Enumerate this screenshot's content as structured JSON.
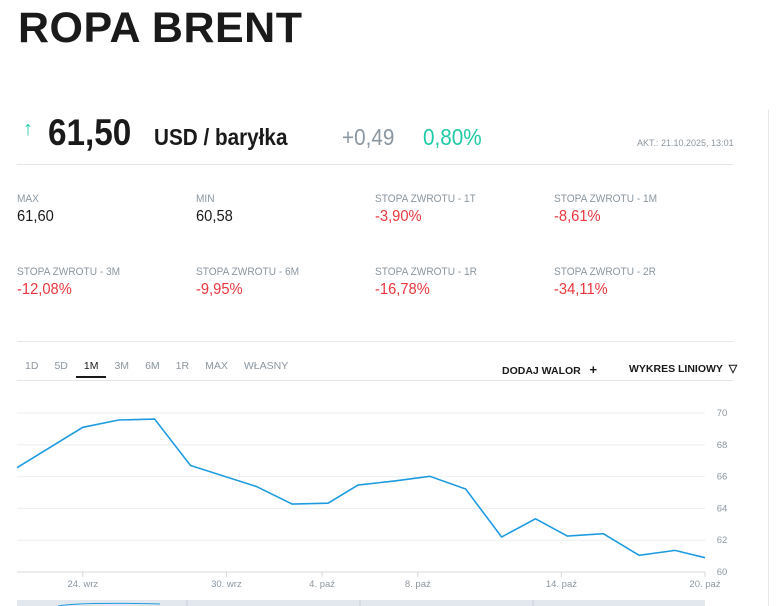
{
  "header": {
    "title": "ROPA BRENT"
  },
  "quote": {
    "direction_icon": "arrow-up-icon",
    "price": "61,50",
    "unit": "USD / baryłka",
    "change": "+0,49",
    "change_pct": "0,80%",
    "updated": "AKT.: 21.10.2025, 13:01"
  },
  "stats": [
    {
      "label": "MAX",
      "value": "61,60"
    },
    {
      "label": "MIN",
      "value": "60,58"
    },
    {
      "label": "STOPA ZWROTU - 1T",
      "value": "-3,90%"
    },
    {
      "label": "STOPA ZWROTU - 1M",
      "value": "-8,61%"
    },
    {
      "label": "STOPA ZWROTU - 3M",
      "value": "-12,08%"
    },
    {
      "label": "STOPA ZWROTU - 6M",
      "value": "-9,95%"
    },
    {
      "label": "STOPA ZWROTU - 1R",
      "value": "-16,78%"
    },
    {
      "label": "STOPA ZWROTU - 2R",
      "value": "-34,11%"
    }
  ],
  "toolbar": {
    "ranges": [
      "1D",
      "5D",
      "1M",
      "3M",
      "6M",
      "1R",
      "MAX",
      "WŁASNY"
    ],
    "active_range": "1M",
    "add_label": "DODAJ WALOR",
    "add_icon": "plus-icon",
    "chart_type_label": "WYKRES LINIOWY",
    "chart_type_icon": "triangle-down-icon"
  },
  "colors": {
    "up": "#1ecba6",
    "down": "#e8373d",
    "line": "#1e9be0",
    "muted": "#8a96a0"
  },
  "chart_data": {
    "type": "line",
    "title": "",
    "xlabel": "",
    "ylabel": "",
    "ylim": [
      60,
      70
    ],
    "yticks": [
      "60",
      "62",
      "64",
      "66",
      "68",
      "70"
    ],
    "xlim": [
      "2025-09-21T06:00",
      "2025-10-20T00:00"
    ],
    "xticks": [
      {
        "date": "2025-09-24",
        "label": "24. wrz"
      },
      {
        "date": "2025-09-30",
        "label": "30. wrz"
      },
      {
        "date": "2025-10-04",
        "label": "4. paź"
      },
      {
        "date": "2025-10-08",
        "label": "8. paź"
      },
      {
        "date": "2025-10-14",
        "label": "14. paź"
      },
      {
        "date": "2025-10-20",
        "label": "20. paź"
      }
    ],
    "grid": true,
    "series": [
      {
        "x": [
          "2025-09-21T06:00",
          "2025-09-24T00:00",
          "2025-09-25T12:00",
          "2025-09-27T00:00",
          "2025-09-28T12:00",
          "2025-10-01T06:00",
          "2025-10-02T18:00",
          "2025-10-04T06:00",
          "2025-10-05T12:00",
          "2025-10-07T00:00",
          "2025-10-08T12:00",
          "2025-10-10T00:00",
          "2025-10-11T12:00",
          "2025-10-12T22:00",
          "2025-10-14T06:00",
          "2025-10-15T18:00",
          "2025-10-17T06:00",
          "2025-10-18T18:00",
          "2025-10-20T00:00"
        ],
        "y": [
          66.56,
          69.1,
          69.56,
          69.62,
          66.7,
          65.38,
          64.27,
          64.33,
          65.47,
          65.72,
          66.02,
          65.22,
          62.2,
          63.35,
          62.26,
          62.41,
          61.05,
          61.36,
          60.9
        ]
      }
    ]
  }
}
